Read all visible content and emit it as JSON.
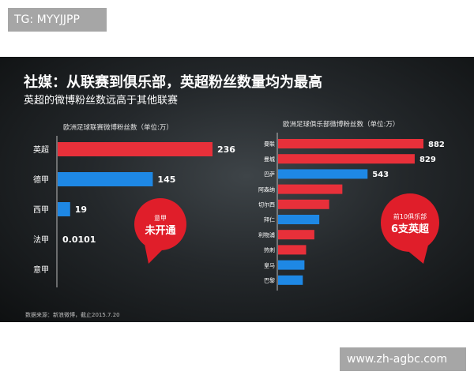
{
  "watermarks": {
    "top_left": "TG: MYYJJPP",
    "bottom_right": "www.zh-agbc.com"
  },
  "title": "社媒：从联赛到俱乐部，英超粉丝数量均为最高",
  "subtitle": "英超的微博粉丝数远高于其他联赛",
  "source": "数据来源：新浪微博，截止2015.7.20",
  "colors": {
    "highlight": "#e8303a",
    "normal": "#1e88e5",
    "bubble": "#e01e2a"
  },
  "chart_data": [
    {
      "type": "bar",
      "orientation": "horizontal",
      "title": "欧洲足球联赛微博粉丝数（单位:万）",
      "categories": [
        "英超",
        "德甲",
        "西甲",
        "法甲",
        "意甲"
      ],
      "values": [
        236,
        145,
        19,
        0.0101,
        null
      ],
      "value_labels": [
        "236",
        "145",
        "19",
        "0.0101",
        ""
      ],
      "colors": [
        "#e8303a",
        "#1e88e5",
        "#1e88e5",
        "#1e88e5",
        "#1e88e5"
      ],
      "annotation": {
        "line1": "意甲",
        "line2": "未开通"
      }
    },
    {
      "type": "bar",
      "orientation": "horizontal",
      "title": "欧洲足球俱乐部微博粉丝数（单位:万）",
      "categories": [
        "曼联",
        "曼城",
        "巴萨",
        "阿森纳",
        "切尔西",
        "拜仁",
        "利物浦",
        "热刺",
        "皇马",
        "巴黎"
      ],
      "values": [
        882,
        829,
        543,
        390,
        310,
        250,
        220,
        170,
        160,
        150
      ],
      "value_labels": [
        "882",
        "829",
        "543",
        "",
        "",
        "",
        "",
        "",
        "",
        ""
      ],
      "colors": [
        "#e8303a",
        "#e8303a",
        "#1e88e5",
        "#e8303a",
        "#e8303a",
        "#1e88e5",
        "#e8303a",
        "#e8303a",
        "#1e88e5",
        "#1e88e5"
      ],
      "annotation": {
        "line1": "前10俱乐部",
        "line2": "6支英超"
      }
    }
  ]
}
